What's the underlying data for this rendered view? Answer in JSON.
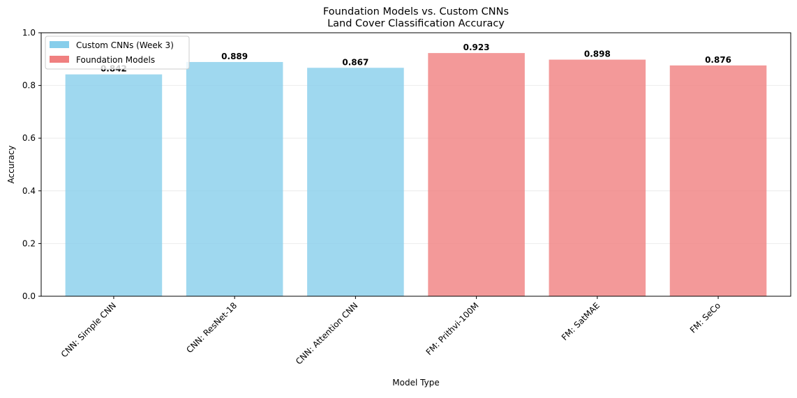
{
  "chart_data": {
    "type": "bar",
    "title": "Foundation Models vs. Custom CNNs",
    "subtitle": "Land Cover Classification Accuracy",
    "xlabel": "Model Type",
    "ylabel": "Accuracy",
    "ylim": [
      0,
      1.0
    ],
    "yticks": [
      "0.0",
      "0.2",
      "0.4",
      "0.6",
      "0.8",
      "1.0"
    ],
    "grid": "y",
    "legend_position": "top-left",
    "categories": [
      "CNN: Simple CNN",
      "CNN: ResNet-18",
      "CNN: Attention CNN",
      "FM: Prithvi-100M",
      "FM: SatMAE",
      "FM: SeCo"
    ],
    "values": [
      0.842,
      0.889,
      0.867,
      0.923,
      0.898,
      0.876
    ],
    "value_labels": [
      "0.842",
      "0.889",
      "0.867",
      "0.923",
      "0.898",
      "0.876"
    ],
    "groups": [
      "cnn",
      "cnn",
      "cnn",
      "fm",
      "fm",
      "fm"
    ],
    "series": [
      {
        "key": "cnn",
        "name": "Custom CNNs (Week 3)",
        "color": "#87ceeb"
      },
      {
        "key": "fm",
        "name": "Foundation Models",
        "color": "#f08080"
      }
    ]
  }
}
